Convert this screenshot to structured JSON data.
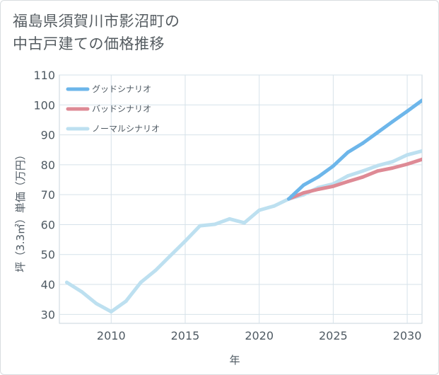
{
  "title": {
    "line1": "福島県須賀川市影沼町の",
    "line2": "中古戸建ての価格推移"
  },
  "chart_data": {
    "type": "line",
    "xlabel": "年",
    "ylabel": "坪（3.3㎡）単価（万円）",
    "xlim": [
      2006.5,
      2031
    ],
    "ylim": [
      27,
      110
    ],
    "xticks": [
      2010,
      2015,
      2020,
      2025,
      2030
    ],
    "yticks": [
      30,
      40,
      50,
      60,
      70,
      80,
      90,
      100,
      110
    ],
    "grid": true,
    "legend_position": "top-left",
    "series": [
      {
        "name": "グッドシナリオ",
        "color": "#6db6ea",
        "x": [
          2022,
          2023,
          2024,
          2025,
          2026,
          2027,
          2028,
          2029,
          2030,
          2031
        ],
        "y": [
          68.6,
          73.2,
          76.0,
          79.6,
          84.2,
          87.2,
          90.8,
          94.4,
          97.9,
          101.5
        ]
      },
      {
        "name": "バッドシナリオ",
        "color": "#de8a95",
        "x": [
          2022,
          2023,
          2024,
          2025,
          2026,
          2027,
          2028,
          2029,
          2030,
          2031
        ],
        "y": [
          68.6,
          70.6,
          71.8,
          72.8,
          74.4,
          75.9,
          77.9,
          78.9,
          80.2,
          81.8
        ]
      },
      {
        "name": "ノーマルシナリオ",
        "color": "#bde0f0",
        "x": [
          2007,
          2008,
          2009,
          2010,
          2011,
          2012,
          2013,
          2014,
          2015,
          2016,
          2017,
          2018,
          2019,
          2020,
          2021,
          2022,
          2023,
          2024,
          2025,
          2026,
          2027,
          2028,
          2029,
          2030,
          2031
        ],
        "y": [
          40.7,
          37.6,
          33.6,
          30.9,
          34.4,
          40.7,
          44.7,
          49.6,
          54.5,
          59.6,
          60.1,
          61.9,
          60.6,
          64.8,
          66.2,
          68.6,
          70.0,
          72.4,
          73.6,
          76.3,
          77.9,
          79.7,
          81.0,
          83.3,
          84.6
        ]
      }
    ]
  }
}
